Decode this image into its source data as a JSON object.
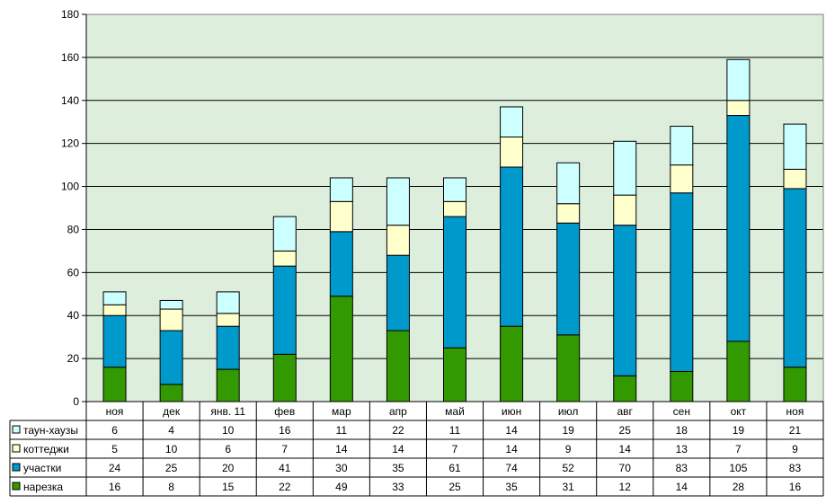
{
  "chart_data": {
    "type": "bar",
    "stacked": true,
    "categories": [
      "ноя",
      "дек",
      "янв. 11",
      "фев",
      "мар",
      "апр",
      "май",
      "июн",
      "июл",
      "авг",
      "сен",
      "окт",
      "ноя"
    ],
    "series": [
      {
        "name": "нарезка",
        "color": "#339900",
        "values": [
          16,
          8,
          15,
          22,
          49,
          33,
          25,
          35,
          31,
          12,
          14,
          28,
          16
        ]
      },
      {
        "name": "участки",
        "color": "#0099CC",
        "values": [
          24,
          25,
          20,
          41,
          30,
          35,
          61,
          74,
          52,
          70,
          83,
          105,
          83
        ]
      },
      {
        "name": "коттеджи",
        "color": "#FFFFCC",
        "values": [
          5,
          10,
          6,
          7,
          14,
          14,
          7,
          14,
          9,
          14,
          13,
          7,
          9
        ]
      },
      {
        "name": "таун-хаузы",
        "color": "#CCFFFF",
        "values": [
          6,
          4,
          10,
          16,
          11,
          22,
          11,
          14,
          19,
          25,
          18,
          19,
          21
        ]
      }
    ],
    "table_row_order": [
      "таун-хаузы",
      "коттеджи",
      "участки",
      "нарезка"
    ],
    "ylim": [
      0,
      180
    ],
    "yticks": [
      0,
      20,
      40,
      60,
      80,
      100,
      120,
      140,
      160,
      180
    ],
    "grid": true,
    "plot_background": "#DDEEDD",
    "legend": "data-table"
  }
}
